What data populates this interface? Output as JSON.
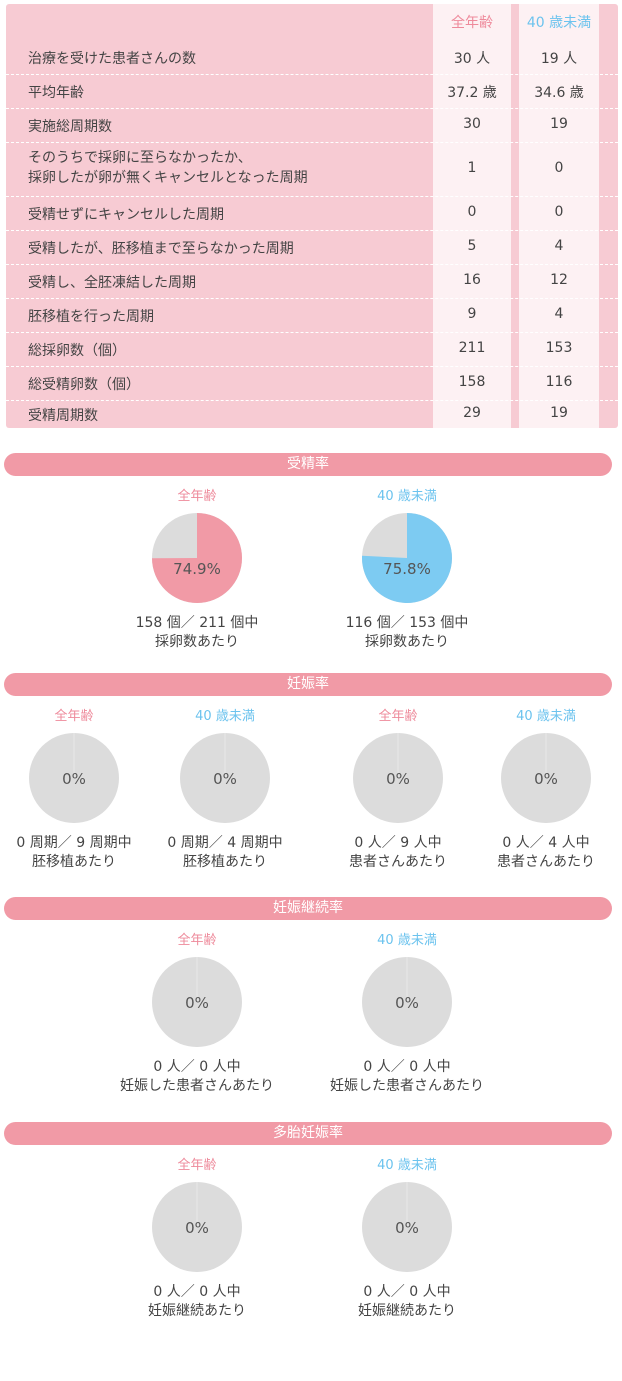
{
  "table": {
    "header_all": "全年齢",
    "header_u40": "40 歳未満",
    "rows": [
      {
        "label": "治療を受けた患者さんの数",
        "all": "30 人",
        "u40": "19 人"
      },
      {
        "label": "平均年齢",
        "all": "37.2 歳",
        "u40": "34.6 歳"
      },
      {
        "label": "実施総周期数",
        "all": "30",
        "u40": "19"
      },
      {
        "label": "そのうちで採卵に至らなかったか、",
        "label2": "採卵したが卵が無くキャンセルとなった周期",
        "all": "1",
        "u40": "0"
      },
      {
        "label": "受精せずにキャンセルした周期",
        "all": "0",
        "u40": "0"
      },
      {
        "label": "受精したが、胚移植まで至らなかった周期",
        "all": "5",
        "u40": "4"
      },
      {
        "label": "受精し、全胚凍結した周期",
        "all": "16",
        "u40": "12"
      },
      {
        "label": "胚移植を行った周期",
        "all": "9",
        "u40": "4"
      },
      {
        "label": "総採卵数（個）",
        "all": "211",
        "u40": "153"
      },
      {
        "label": "総受精卵数（個）",
        "all": "158",
        "u40": "116"
      },
      {
        "label": "受精周期数",
        "all": "29",
        "u40": "19"
      }
    ]
  },
  "colors": {
    "pink": "#f19aa6",
    "blue": "#7dcbf2",
    "gray": "#dcdcdc"
  },
  "sections": {
    "fertilization": "受精率",
    "pregnancy": "妊娠率",
    "continuation": "妊娠継続率",
    "multiple": "多胎妊娠率"
  },
  "chart_data": [
    {
      "type": "pie",
      "section": "受精率",
      "charts": [
        {
          "caption": "全年齢",
          "value_pct": 74.9,
          "label": "74.9%",
          "color": "pink",
          "line1": "158 個／ 211 個中",
          "line2": "採卵数あたり"
        },
        {
          "caption": "40 歳未満",
          "value_pct": 75.8,
          "label": "75.8%",
          "color": "blue",
          "line1": "116 個／ 153 個中",
          "line2": "採卵数あたり"
        }
      ]
    },
    {
      "type": "pie",
      "section": "妊娠率",
      "charts": [
        {
          "caption": "全年齢",
          "value_pct": 0,
          "label": "0%",
          "color": "pink",
          "line1": "0 周期／ 9 周期中",
          "line2": "胚移植あたり"
        },
        {
          "caption": "40 歳未満",
          "value_pct": 0,
          "label": "0%",
          "color": "blue",
          "line1": "0 周期／ 4 周期中",
          "line2": "胚移植あたり"
        },
        {
          "caption": "全年齢",
          "value_pct": 0,
          "label": "0%",
          "color": "pink",
          "line1": "0 人／ 9 人中",
          "line2": "患者さんあたり"
        },
        {
          "caption": "40 歳未満",
          "value_pct": 0,
          "label": "0%",
          "color": "blue",
          "line1": "0 人／ 4 人中",
          "line2": "患者さんあたり"
        }
      ]
    },
    {
      "type": "pie",
      "section": "妊娠継続率",
      "charts": [
        {
          "caption": "全年齢",
          "value_pct": 0,
          "label": "0%",
          "color": "pink",
          "line1": "0 人／ 0 人中",
          "line2": "妊娠した患者さんあたり"
        },
        {
          "caption": "40 歳未満",
          "value_pct": 0,
          "label": "0%",
          "color": "blue",
          "line1": "0 人／ 0 人中",
          "line2": "妊娠した患者さんあたり"
        }
      ]
    },
    {
      "type": "pie",
      "section": "多胎妊娠率",
      "charts": [
        {
          "caption": "全年齢",
          "value_pct": 0,
          "label": "0%",
          "color": "pink",
          "line1": "0 人／ 0 人中",
          "line2": "妊娠継続あたり"
        },
        {
          "caption": "40 歳未満",
          "value_pct": 0,
          "label": "0%",
          "color": "blue",
          "line1": "0 人／ 0 人中",
          "line2": "妊娠継続あたり"
        }
      ]
    }
  ]
}
